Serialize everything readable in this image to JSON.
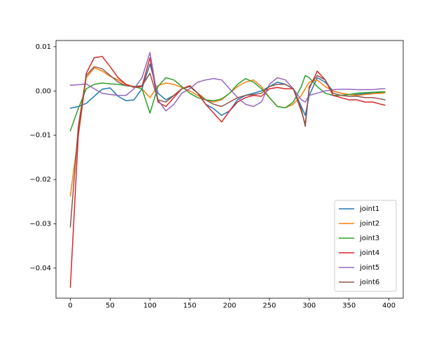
{
  "chart_data": {
    "type": "line",
    "title": "",
    "xlabel": "",
    "ylabel": "",
    "xlim": [
      -18,
      418
    ],
    "ylim": [
      -0.0468,
      0.0114
    ],
    "x_ticks": [
      0,
      50,
      100,
      150,
      200,
      250,
      300,
      350,
      400
    ],
    "x_tick_labels": [
      "0",
      "50",
      "100",
      "150",
      "200",
      "250",
      "300",
      "350",
      "400"
    ],
    "y_ticks": [
      -0.04,
      -0.03,
      -0.02,
      -0.01,
      0.0,
      0.01
    ],
    "y_tick_labels": [
      "−0.04",
      "−0.03",
      "−0.02",
      "−0.01",
      "0.00",
      "0.01"
    ],
    "grid": false,
    "legend_position": "lower-right",
    "x": [
      0,
      10,
      20,
      30,
      40,
      50,
      60,
      70,
      80,
      90,
      100,
      110,
      120,
      130,
      140,
      150,
      160,
      170,
      180,
      190,
      200,
      210,
      220,
      230,
      240,
      250,
      260,
      270,
      280,
      290,
      295,
      300,
      310,
      320,
      330,
      340,
      350,
      360,
      370,
      380,
      390,
      395
    ],
    "series": [
      {
        "name": "joint1",
        "color": "#1f77b4",
        "values": [
          -0.0039,
          -0.0035,
          -0.0028,
          -0.0012,
          0.0004,
          0.0007,
          -0.0012,
          -0.0022,
          -0.002,
          0.0005,
          0.0061,
          -0.0005,
          -0.002,
          -0.001,
          0.0005,
          0.001,
          -0.0005,
          -0.003,
          -0.004,
          -0.0055,
          -0.0045,
          -0.002,
          -0.001,
          -0.0005,
          0.0,
          0.001,
          0.002,
          0.0015,
          0.0005,
          -0.0035,
          -0.0055,
          -0.001,
          0.003,
          0.002,
          0.0,
          -0.0005,
          -0.0008,
          -0.0008,
          -0.0006,
          -0.0005,
          -0.0004,
          -0.0002
        ]
      },
      {
        "name": "joint2",
        "color": "#ff7f0e",
        "values": [
          -0.0237,
          -0.01,
          0.003,
          0.0052,
          0.0045,
          0.0033,
          0.0025,
          0.0015,
          0.001,
          0.0005,
          -0.0015,
          0.0012,
          0.0018,
          0.0015,
          0.0008,
          0.0,
          -0.001,
          -0.002,
          -0.0025,
          -0.002,
          -0.0005,
          0.001,
          0.002,
          0.0025,
          0.001,
          -0.0015,
          -0.0035,
          -0.0038,
          -0.003,
          -0.001,
          0.0005,
          0.002,
          0.0025,
          0.001,
          0.0,
          -0.0005,
          -0.0008,
          -0.001,
          -0.0008,
          -0.0006,
          -0.0005,
          -0.0004
        ]
      },
      {
        "name": "joint3",
        "color": "#2ca02c",
        "values": [
          -0.009,
          -0.004,
          0.0005,
          0.0015,
          0.0018,
          0.0016,
          0.0015,
          0.0012,
          0.001,
          0.0005,
          -0.005,
          0.001,
          0.003,
          0.0025,
          0.001,
          -0.0005,
          -0.0015,
          -0.002,
          -0.0022,
          -0.0018,
          -0.0005,
          0.0015,
          0.0028,
          0.002,
          0.0005,
          -0.0015,
          -0.0035,
          -0.0038,
          -0.0025,
          0.001,
          0.0035,
          0.003,
          0.001,
          -0.0005,
          -0.001,
          -0.001,
          -0.0008,
          -0.0005,
          -0.0004,
          -0.0003,
          -0.0002,
          -0.0002
        ]
      },
      {
        "name": "joint4",
        "color": "#d62728",
        "values": [
          -0.0443,
          -0.01,
          0.004,
          0.0075,
          0.0078,
          0.0055,
          0.003,
          0.0015,
          0.0008,
          0.001,
          0.0075,
          -0.0025,
          -0.0035,
          -0.0015,
          0.0005,
          0.0012,
          -0.0005,
          -0.003,
          -0.005,
          -0.007,
          -0.0045,
          -0.0025,
          -0.0015,
          -0.001,
          -0.0012,
          0.0005,
          0.0008,
          0.0005,
          0.0005,
          -0.0045,
          -0.0075,
          0.0005,
          0.0045,
          0.0025,
          -0.001,
          -0.0015,
          -0.002,
          -0.002,
          -0.0025,
          -0.0025,
          -0.003,
          -0.0032
        ]
      },
      {
        "name": "joint5",
        "color": "#9467bd",
        "values": [
          0.0013,
          0.0014,
          0.0016,
          0.0005,
          -0.0005,
          -0.0008,
          -0.001,
          -0.001,
          0.0005,
          0.003,
          0.0087,
          -0.002,
          -0.0045,
          -0.003,
          -0.0005,
          0.0005,
          0.002,
          0.0025,
          0.0028,
          0.0025,
          0.0005,
          -0.0015,
          -0.003,
          -0.0035,
          -0.0025,
          0.0015,
          0.003,
          0.0025,
          0.0005,
          -0.002,
          -0.0025,
          -0.001,
          -0.0005,
          0.0,
          0.0003,
          0.0004,
          0.0004,
          0.0003,
          0.0003,
          0.0003,
          0.0005,
          0.0005
        ]
      },
      {
        "name": "joint6",
        "color": "#8c564b",
        "values": [
          -0.0307,
          -0.008,
          0.0035,
          0.0055,
          0.005,
          0.0035,
          0.002,
          0.0012,
          0.001,
          0.0012,
          0.004,
          -0.002,
          -0.0025,
          -0.001,
          0.0005,
          0.001,
          -0.0005,
          -0.002,
          -0.003,
          -0.0035,
          -0.0025,
          -0.0015,
          -0.001,
          -0.0008,
          -0.0005,
          0.001,
          0.0015,
          0.0015,
          0.0005,
          -0.004,
          -0.008,
          0.001,
          0.0035,
          0.0025,
          -0.0005,
          -0.001,
          -0.0012,
          -0.0012,
          -0.0015,
          -0.0015,
          -0.0018,
          -0.002
        ]
      }
    ]
  }
}
